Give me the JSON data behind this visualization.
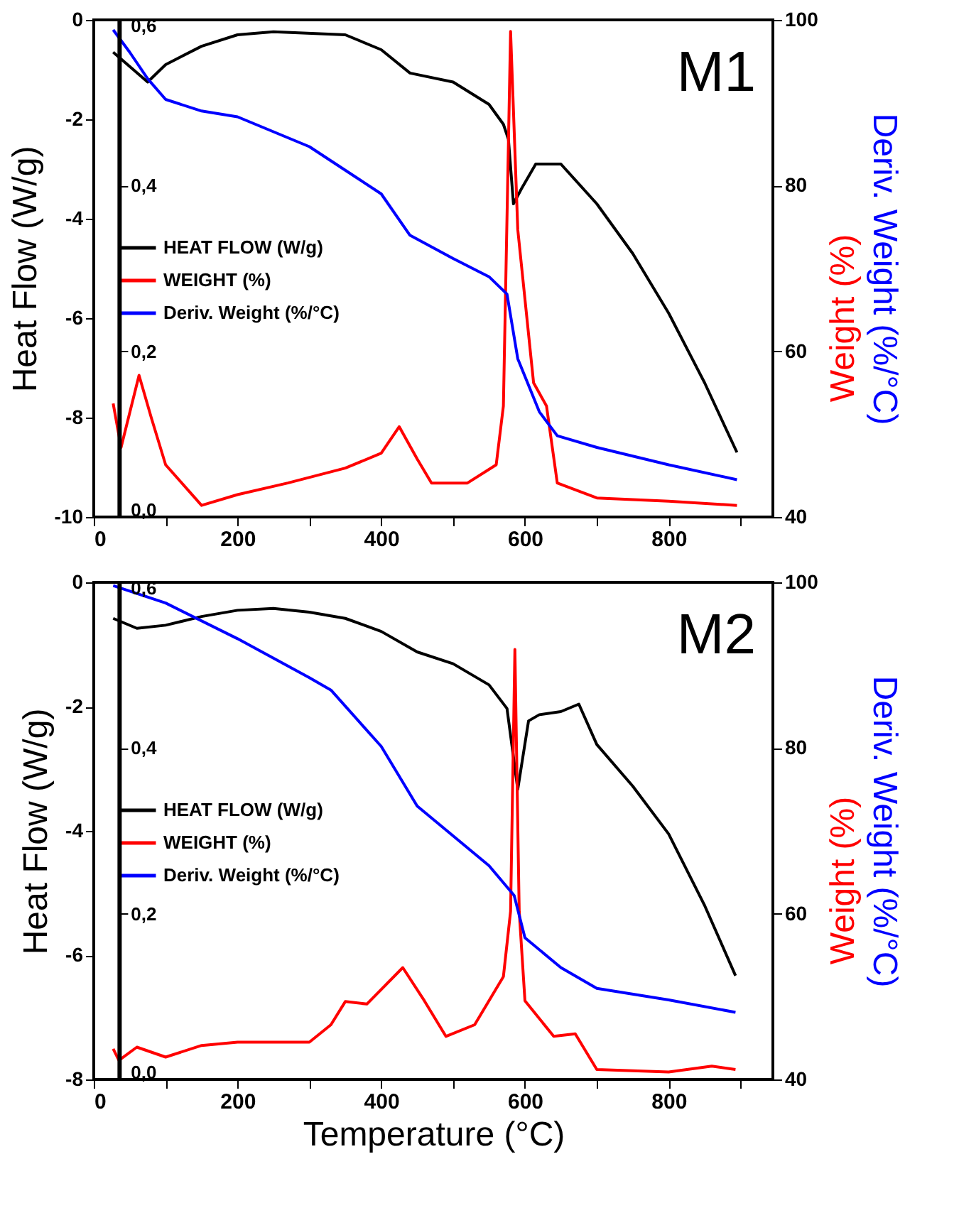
{
  "chart_data": [
    {
      "type": "line",
      "ylabel": "Heat Flow (W/g)",
      "y2label": "Deriv. Weight (%/°C)",
      "y3label": "Weight (%)",
      "annotations": [
        "M1"
      ],
      "legend": "left",
      "grid": false,
      "xlim": [
        0,
        945
      ],
      "xticks": [
        0,
        {
          "value": 100,
          "label": null
        },
        200,
        {
          "value": 300,
          "label": null
        },
        400,
        {
          "value": 500,
          "label": null
        },
        600,
        {
          "value": 700,
          "label": null
        },
        800,
        {
          "value": 900,
          "label": null
        }
      ],
      "ylim": [
        -10,
        0
      ],
      "yticks": [
        -10,
        -8,
        -6,
        -4,
        -2,
        0
      ],
      "y2lim": [
        40,
        100
      ],
      "y2ticks": [
        40,
        60,
        80,
        100
      ],
      "y3lim": [
        0,
        0.6
      ],
      "y3ticks": [
        {
          "value": 0,
          "label": "0,0"
        },
        {
          "value": 0.2,
          "label": "0,2"
        },
        {
          "value": 0.4,
          "label": "0,4"
        },
        {
          "value": 0.6,
          "label": "0,6"
        }
      ],
      "series": [
        {
          "name": "HEAT FLOW (W/g)",
          "color": "#000000",
          "axis": "y",
          "x": [
            27,
            75,
            100,
            150,
            200,
            250,
            350,
            400,
            440,
            500,
            550,
            570,
            577,
            584,
            595,
            615,
            650,
            700,
            750,
            800,
            850,
            895
          ],
          "values": [
            -0.65,
            -1.25,
            -0.9,
            -0.53,
            -0.3,
            -0.24,
            -0.3,
            -0.6,
            -1.07,
            -1.25,
            -1.7,
            -2.1,
            -2.4,
            -3.7,
            -3.4,
            -2.9,
            -2.9,
            -3.7,
            -4.7,
            -5.9,
            -7.3,
            -8.7
          ]
        },
        {
          "name": "WEIGHT (%)",
          "color": "#ff0000",
          "axis": "y3",
          "x": [
            27,
            38,
            63,
            80,
            100,
            150,
            200,
            270,
            350,
            400,
            425,
            450,
            470,
            520,
            560,
            570,
            580,
            590,
            612,
            630,
            645,
            700,
            800,
            895
          ],
          "values": [
            0.137,
            0.084,
            0.171,
            0.12,
            0.063,
            0.014,
            0.027,
            0.041,
            0.059,
            0.077,
            0.109,
            0.07,
            0.041,
            0.041,
            0.063,
            0.134,
            0.586,
            0.347,
            0.162,
            0.134,
            0.041,
            0.023,
            0.019,
            0.014
          ]
        },
        {
          "name": "Deriv. Weight (%/°C)",
          "color": "#0000ff",
          "axis": "y2",
          "x": [
            27,
            50,
            75,
            100,
            150,
            200,
            300,
            400,
            440,
            500,
            550,
            575,
            590,
            620,
            645,
            700,
            800,
            895
          ],
          "values": [
            98.8,
            96.1,
            92.9,
            90.4,
            89.0,
            88.3,
            84.7,
            79.0,
            74.0,
            71.2,
            69.0,
            66.9,
            59.1,
            52.7,
            49.8,
            48.4,
            46.3,
            44.5
          ]
        }
      ]
    },
    {
      "type": "line",
      "xlabel": "Temperature (°C)",
      "ylabel": "Heat Flow (W/g)",
      "y2label": "Deriv. Weight (%/°C)",
      "y3label": "Weight (%)",
      "annotations": [
        "M2"
      ],
      "legend": "left",
      "grid": false,
      "xlim": [
        0,
        945
      ],
      "xticks": [
        0,
        {
          "value": 100,
          "label": null
        },
        200,
        {
          "value": 300,
          "label": null
        },
        400,
        {
          "value": 500,
          "label": null
        },
        600,
        {
          "value": 700,
          "label": null
        },
        800,
        {
          "value": 900,
          "label": null
        }
      ],
      "ylim": [
        -8,
        0
      ],
      "yticks": [
        -8,
        -6,
        -4,
        -2,
        0
      ],
      "y2lim": [
        40,
        100
      ],
      "y2ticks": [
        40,
        60,
        80,
        100
      ],
      "y3lim": [
        0,
        0.6
      ],
      "y3ticks": [
        {
          "value": 0,
          "label": "0,0"
        },
        {
          "value": 0.2,
          "label": "0,2"
        },
        {
          "value": 0.4,
          "label": "0,4"
        },
        {
          "value": 0.6,
          "label": "0,6"
        }
      ],
      "series": [
        {
          "name": "HEAT FLOW (W/g)",
          "color": "#000000",
          "axis": "y",
          "x": [
            27,
            60,
            100,
            150,
            200,
            250,
            300,
            350,
            400,
            450,
            500,
            550,
            575,
            590,
            605,
            620,
            650,
            675,
            700,
            750,
            800,
            850,
            893
          ],
          "values": [
            -0.58,
            -0.74,
            -0.69,
            -0.55,
            -0.45,
            -0.42,
            -0.48,
            -0.58,
            -0.79,
            -1.12,
            -1.31,
            -1.65,
            -2.03,
            -3.33,
            -2.23,
            -2.13,
            -2.08,
            -1.96,
            -2.61,
            -3.28,
            -4.05,
            -5.2,
            -6.33
          ]
        },
        {
          "name": "WEIGHT (%)",
          "color": "#ff0000",
          "axis": "y3",
          "x": [
            27,
            35,
            60,
            100,
            150,
            200,
            300,
            330,
            350,
            380,
            430,
            460,
            490,
            530,
            570,
            580,
            586,
            592,
            600,
            640,
            670,
            700,
            800,
            860,
            893
          ],
          "values": [
            0.037,
            0.023,
            0.039,
            0.027,
            0.041,
            0.045,
            0.045,
            0.066,
            0.094,
            0.091,
            0.135,
            0.095,
            0.052,
            0.066,
            0.124,
            0.203,
            0.519,
            0.203,
            0.095,
            0.052,
            0.055,
            0.012,
            0.009,
            0.016,
            0.012
          ]
        },
        {
          "name": "Deriv. Weight (%/°C)",
          "color": "#0000ff",
          "axis": "y2",
          "x": [
            27,
            100,
            200,
            300,
            330,
            400,
            450,
            500,
            550,
            585,
            600,
            650,
            700,
            800,
            893
          ],
          "values": [
            99.6,
            97.5,
            93.2,
            88.5,
            87.0,
            80.2,
            73.0,
            69.4,
            65.8,
            62.2,
            57.1,
            53.5,
            51.0,
            49.6,
            48.1
          ]
        }
      ]
    }
  ]
}
